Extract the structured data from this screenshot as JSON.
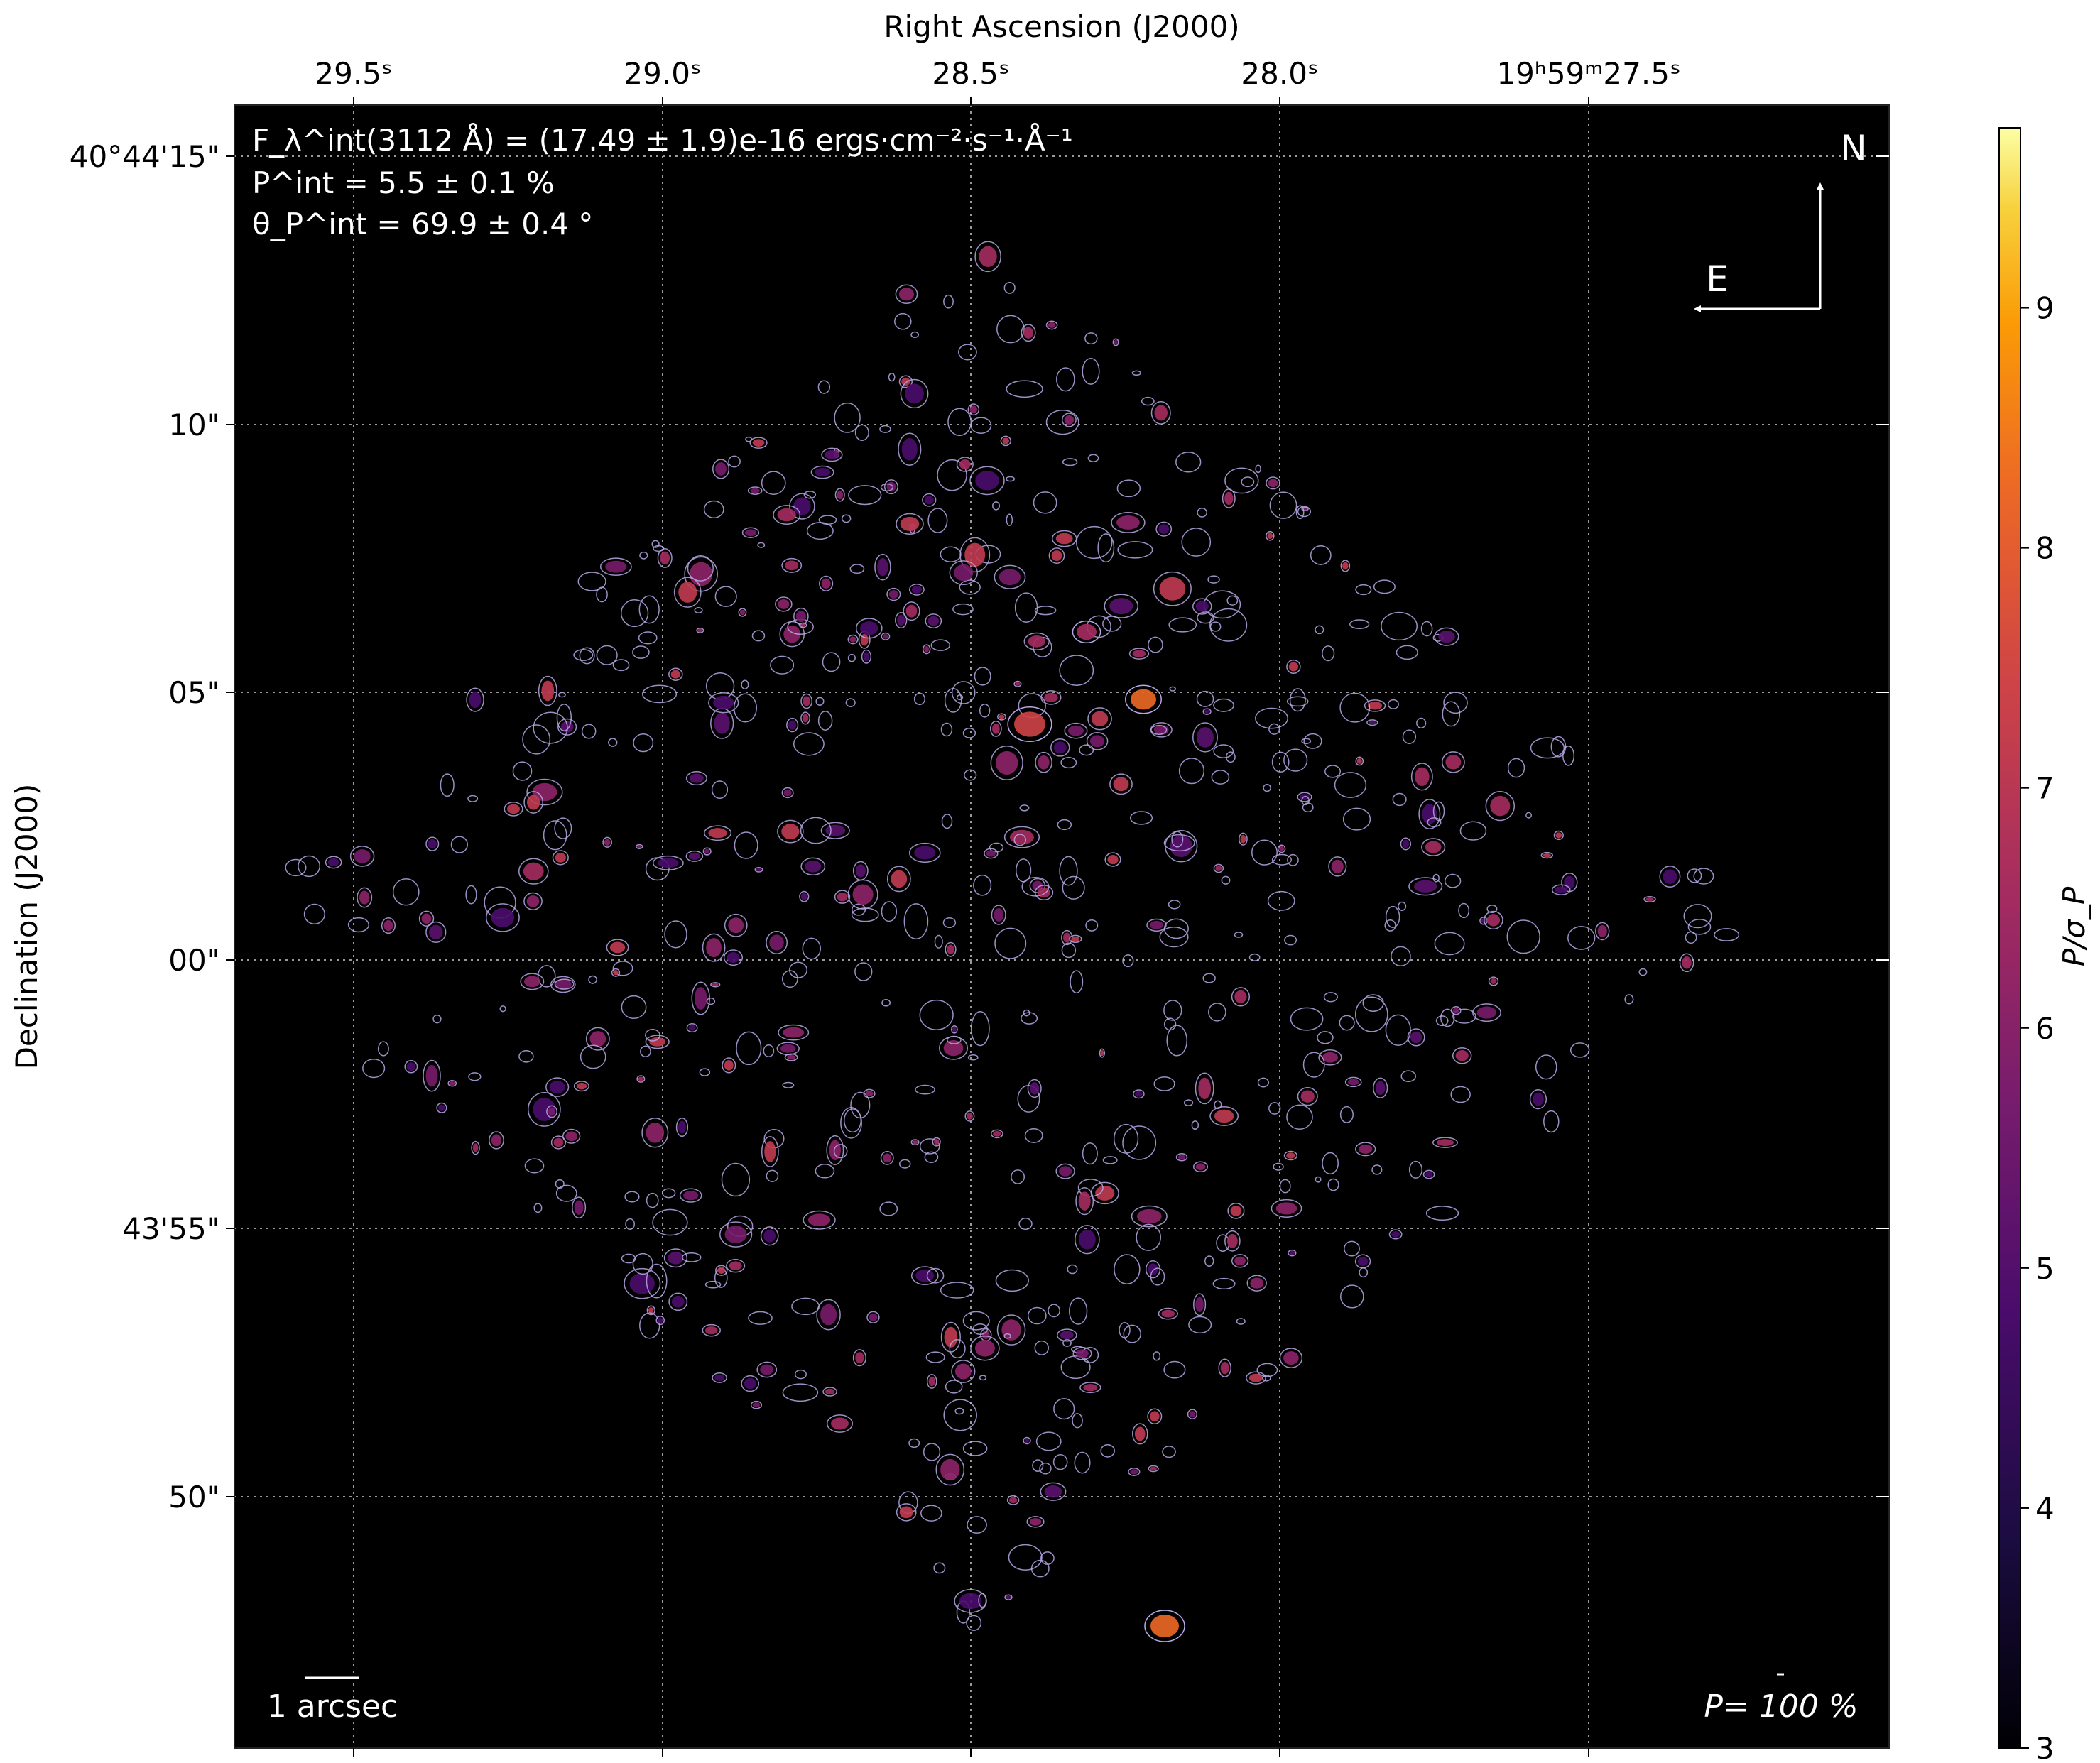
{
  "chart_data": {
    "type": "heatmap",
    "title": "",
    "xlabel": "Right Ascension (J2000)",
    "ylabel": "Declination (J2000)",
    "x_ticks": [
      "29.5ˢ",
      "29.0ˢ",
      "28.5ˢ",
      "28.0ˢ",
      "19ʰ59ᵐ27.5ˢ"
    ],
    "y_ticks": [
      "40°44'15\"",
      "10\"",
      "05\"",
      "00\"",
      "43'55\"",
      "50\""
    ],
    "colorbar": {
      "label": "P/σ_P",
      "min": 3,
      "max": 9.75,
      "ticks": [
        "3",
        "4",
        "5",
        "6",
        "7",
        "8",
        "9"
      ],
      "colormap": "inferno"
    },
    "annotations": {
      "flux": "F_λ^int(3112 Å) = (17.49 ± 1.9)e-16 ergs·cm⁻²·s⁻¹·Å⁻¹",
      "pol_degree": "P^int = 5.5 ± 0.1 %",
      "pol_angle": "θ_P^int = 69.9 ± 0.4 °",
      "compass_north": "N",
      "compass_east": "E",
      "scalebar": "1 arcsec",
      "vector_scale": "P= 100 %"
    },
    "grid": true,
    "contour_color": "#b7a8e6",
    "background_color": "#000000"
  }
}
